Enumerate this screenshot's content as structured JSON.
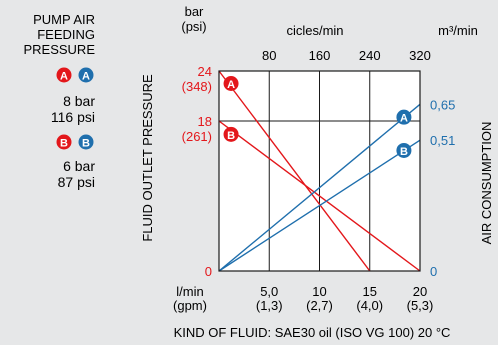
{
  "legend_panel": {
    "title_lines": [
      "PUMP AIR",
      "FEEDING",
      "PRESSURE"
    ],
    "groups": [
      {
        "badges": [
          "A",
          "A"
        ],
        "bar": "8 bar",
        "psi": "116 psi"
      },
      {
        "badges": [
          "B",
          "B"
        ],
        "bar": "6 bar",
        "psi": "87 psi"
      }
    ]
  },
  "colors": {
    "pressure": "#e3171b",
    "air": "#1f6fad",
    "grid": "#1a1a1a",
    "background": "#e6e7e8",
    "plot_bg": "#ffffff"
  },
  "chart_data": {
    "type": "line",
    "title": "",
    "footer": "KIND OF FLUID: SAE30 oil (ISO VG 100) 20 °C",
    "left_axis": {
      "label": "FLUID OUTLET PRESSURE",
      "unit_lines": [
        "bar",
        "(psi)"
      ],
      "range": [
        0,
        24
      ],
      "ticks": [
        {
          "value": 24,
          "label": "24",
          "sub": "(348)"
        },
        {
          "value": 18,
          "label": "18",
          "sub": "(261)"
        },
        {
          "value": 0,
          "label": "0",
          "sub": ""
        }
      ]
    },
    "right_axis": {
      "label": "AIR CONSUMPTION",
      "unit": "m³/min",
      "range": [
        0,
        0.78
      ],
      "ticks": [
        {
          "value": 0.65,
          "label": "0,65"
        },
        {
          "value": 0.51,
          "label": "0,51"
        },
        {
          "value": 0,
          "label": "0"
        }
      ]
    },
    "bottom_axis": {
      "unit_lines": [
        "l/min",
        "(gpm)"
      ],
      "range": [
        0,
        20
      ],
      "ticks": [
        {
          "value": 5,
          "label": "5,0",
          "sub": "(1,3)"
        },
        {
          "value": 10,
          "label": "10",
          "sub": "(2,7)"
        },
        {
          "value": 15,
          "label": "15",
          "sub": "(4,0)"
        },
        {
          "value": 20,
          "label": "20",
          "sub": "(5,3)"
        }
      ]
    },
    "top_axis": {
      "unit": "cicles/min",
      "ticks": [
        {
          "value": 5,
          "label": "80"
        },
        {
          "value": 10,
          "label": "160"
        },
        {
          "value": 15,
          "label": "240"
        },
        {
          "value": 20,
          "label": "320"
        }
      ]
    },
    "grid": true,
    "series": [
      {
        "name": "A",
        "kind": "pressure",
        "axis": "left",
        "x": [
          0,
          15
        ],
        "y": [
          24,
          0
        ]
      },
      {
        "name": "B",
        "kind": "pressure",
        "axis": "left",
        "x": [
          0,
          20
        ],
        "y": [
          18,
          0
        ]
      },
      {
        "name": "A",
        "kind": "air",
        "axis": "right",
        "x": [
          0,
          20
        ],
        "y": [
          0,
          0.65
        ]
      },
      {
        "name": "B",
        "kind": "air",
        "axis": "right",
        "x": [
          0,
          20
        ],
        "y": [
          0,
          0.51
        ]
      }
    ],
    "markers": [
      {
        "label": "A",
        "kind": "pressure",
        "x": 1.2,
        "axis": "left",
        "y": 22.5
      },
      {
        "label": "B",
        "kind": "pressure",
        "x": 1.2,
        "axis": "left",
        "y": 16.4
      },
      {
        "label": "A",
        "kind": "air",
        "x": 18.4,
        "axis": "right",
        "y": 0.6
      },
      {
        "label": "B",
        "kind": "air",
        "x": 18.4,
        "axis": "right",
        "y": 0.47
      }
    ]
  }
}
